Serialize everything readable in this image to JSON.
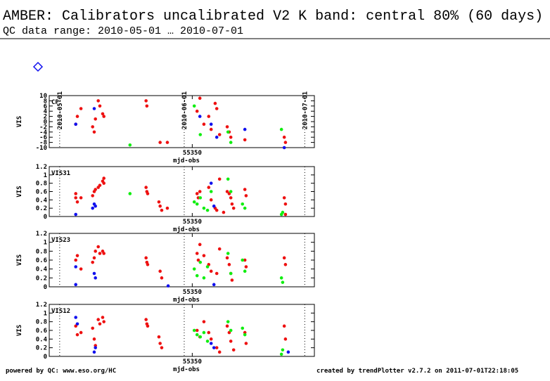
{
  "header": {
    "title": "AMBER: Calibrators uncalibrated V2 K band: central 80% (60 days)",
    "subtitle": "QC data range: 2010-05-01 … 2010-07-01"
  },
  "date_markers": [
    {
      "label": "2010-05-01",
      "value": 55317
    },
    {
      "label": "2010-06-01",
      "value": 55348
    },
    {
      "label": "2010-07-01",
      "value": 55378
    }
  ],
  "footer": {
    "left": "powered by QC: www.eso.org/HC",
    "right": "created by trendPlotter v2.7.2 on 2011-07-01T22:18:05"
  },
  "chart_data": [
    {
      "type": "scatter",
      "label": "CP",
      "xlabel": "mjd-obs",
      "ylabel": "VIS",
      "xlim": [
        55314.4,
        55380.4
      ],
      "xticks": [
        55350
      ],
      "ylim": [
        -10,
        10
      ],
      "yticks": [
        -10,
        -8,
        -6,
        -4,
        -2,
        0,
        2,
        4,
        6,
        8,
        10
      ],
      "series": [
        {
          "color": "#ee1111",
          "x": [
            55321.0,
            55321.4,
            55322.3,
            55325.2,
            55325.6,
            55325.9,
            55326.6,
            55327.0,
            55327.7,
            55328.0,
            55338.5,
            55338.7,
            55342.0,
            55343.8,
            55351.2,
            55351.9,
            55352.9,
            55354.1,
            55354.7,
            55355.7,
            55356.1,
            55356.8,
            55358.7,
            55359.2,
            55359.6,
            55363.1,
            55372.9,
            55373.2
          ],
          "values": [
            -1,
            2,
            5,
            -2,
            -4,
            1,
            8,
            6,
            3,
            2,
            8,
            6,
            -8,
            -8,
            4,
            9,
            -1,
            2,
            -3,
            7,
            5,
            -5,
            -2,
            -4,
            -6,
            -7,
            -6,
            -8
          ]
        },
        {
          "color": "#1111ee",
          "x": [
            55321.0,
            55325.6,
            55351.9,
            55354.7,
            55356.1,
            55363.1,
            55372.9
          ],
          "values": [
            -1,
            5,
            2,
            -1,
            -6,
            -3,
            -10
          ]
        },
        {
          "color": "#11ee11",
          "x": [
            55334.5,
            55350.5,
            55352.0,
            55358.9,
            55359.6,
            55372.2
          ],
          "values": [
            -9,
            6,
            -5,
            -4,
            -8,
            -3
          ]
        }
      ]
    },
    {
      "type": "scatter",
      "label": "VIS31",
      "xlabel": "mjd-obs",
      "ylabel": "VIS",
      "xlim": [
        55314.4,
        55380.4
      ],
      "xticks": [
        55350
      ],
      "ylim": [
        0,
        1.2
      ],
      "yticks": [
        0,
        0.2,
        0.4,
        0.6,
        0.8,
        1,
        1.2
      ],
      "series": [
        {
          "color": "#ee1111",
          "x": [
            55321.0,
            55321.0,
            55321.4,
            55322.3,
            55325.2,
            55325.6,
            55325.9,
            55326.6,
            55327.0,
            55327.7,
            55328.0,
            55328.0,
            55338.5,
            55338.7,
            55338.9,
            55341.7,
            55342.0,
            55342.4,
            55343.8,
            55351.2,
            55351.5,
            55351.9,
            55354.1,
            55354.7,
            55355.7,
            55356.1,
            55356.8,
            55357.8,
            55358.7,
            55359.2,
            55359.6,
            55359.9,
            55360.3,
            55363.1,
            55363.4,
            55372.9,
            55373.2,
            55373.2
          ],
          "values": [
            0.55,
            0.45,
            0.35,
            0.45,
            0.5,
            0.6,
            0.65,
            0.7,
            0.75,
            0.85,
            0.92,
            0.8,
            0.7,
            0.6,
            0.55,
            0.35,
            0.25,
            0.15,
            0.2,
            0.55,
            0.45,
            0.6,
            0.7,
            0.4,
            0.2,
            0.15,
            0.9,
            0.1,
            0.6,
            0.55,
            0.45,
            0.3,
            0.2,
            0.65,
            0.5,
            0.45,
            0.3,
            0.05
          ]
        },
        {
          "color": "#1111ee",
          "x": [
            55321.0,
            55325.2,
            55325.6,
            55325.9,
            55354.7,
            55355.4
          ],
          "values": [
            0.05,
            0.2,
            0.3,
            0.25,
            0.8,
            0.25
          ]
        },
        {
          "color": "#11ee11",
          "x": [
            55334.5,
            55350.5,
            55351.2,
            55352.0,
            55352.9,
            55353.8,
            55354.7,
            55358.9,
            55359.6,
            55362.5,
            55363.1,
            55372.2,
            55372.5
          ],
          "values": [
            0.55,
            0.35,
            0.3,
            0.45,
            0.2,
            0.15,
            0.6,
            0.9,
            0.6,
            0.3,
            0.2,
            0.05,
            0.1
          ]
        }
      ]
    },
    {
      "type": "scatter",
      "label": "VIS23",
      "xlabel": "mjd-obs",
      "ylabel": "VIS",
      "xlim": [
        55314.4,
        55380.4
      ],
      "xticks": [
        55350
      ],
      "ylim": [
        0,
        1.2
      ],
      "yticks": [
        0,
        0.2,
        0.4,
        0.6,
        0.8,
        1,
        1.2
      ],
      "series": [
        {
          "color": "#ee1111",
          "x": [
            55321.0,
            55321.4,
            55322.3,
            55325.2,
            55325.6,
            55325.9,
            55326.6,
            55327.0,
            55327.7,
            55328.0,
            55338.5,
            55338.7,
            55338.9,
            55342.0,
            55342.4,
            55351.2,
            55351.5,
            55351.9,
            55352.9,
            55354.1,
            55354.7,
            55356.1,
            55356.8,
            55358.7,
            55359.2,
            55359.6,
            55359.9,
            55363.1,
            55363.4,
            55372.9,
            55373.2
          ],
          "values": [
            0.6,
            0.7,
            0.4,
            0.55,
            0.65,
            0.8,
            0.9,
            0.75,
            0.8,
            0.75,
            0.65,
            0.55,
            0.5,
            0.35,
            0.2,
            0.75,
            0.6,
            0.95,
            0.7,
            0.5,
            0.35,
            0.3,
            0.85,
            0.65,
            0.5,
            0.3,
            0.15,
            0.6,
            0.45,
            0.65,
            0.5
          ]
        },
        {
          "color": "#1111ee",
          "x": [
            55321.0,
            55321.0,
            55325.6,
            55325.9,
            55344.0,
            55355.4
          ],
          "values": [
            0.45,
            0.05,
            0.3,
            0.2,
            0.02,
            0.05
          ]
        },
        {
          "color": "#11ee11",
          "x": [
            55350.5,
            55351.2,
            55352.0,
            55352.9,
            55353.8,
            55358.9,
            55359.6,
            55362.5,
            55363.1,
            55372.2,
            55372.5
          ],
          "values": [
            0.4,
            0.25,
            0.55,
            0.2,
            0.45,
            0.75,
            0.3,
            0.6,
            0.35,
            0.2,
            0.1
          ]
        }
      ]
    },
    {
      "type": "scatter",
      "label": "VIS12",
      "xlabel": "mjd-obs",
      "ylabel": "VIS",
      "xlim": [
        55314.4,
        55380.4
      ],
      "xticks": [
        55350
      ],
      "ylim": [
        0,
        1.2
      ],
      "yticks": [
        0,
        0.2,
        0.4,
        0.6,
        0.8,
        1,
        1.2
      ],
      "series": [
        {
          "color": "#ee1111",
          "x": [
            55321.0,
            55321.4,
            55322.3,
            55325.2,
            55325.6,
            55325.9,
            55326.6,
            55327.0,
            55327.7,
            55328.0,
            55338.5,
            55338.7,
            55338.9,
            55341.7,
            55342.0,
            55342.4,
            55351.2,
            55351.9,
            55352.9,
            55354.1,
            55354.7,
            55356.1,
            55356.8,
            55358.7,
            55359.2,
            55359.6,
            55360.3,
            55363.1,
            55363.4,
            55372.9,
            55373.2
          ],
          "values": [
            0.7,
            0.5,
            0.55,
            0.65,
            0.4,
            0.25,
            0.85,
            0.75,
            0.9,
            0.8,
            0.85,
            0.75,
            0.7,
            0.45,
            0.3,
            0.2,
            0.6,
            0.45,
            0.8,
            0.55,
            0.4,
            0.2,
            0.1,
            0.7,
            0.55,
            0.35,
            0.15,
            0.55,
            0.3,
            0.7,
            0.4
          ]
        },
        {
          "color": "#1111ee",
          "x": [
            55321.0,
            55321.4,
            55325.6,
            55325.9,
            55354.7,
            55355.4,
            55373.9
          ],
          "values": [
            0.9,
            0.75,
            0.1,
            0.2,
            0.3,
            0.2,
            0.1
          ]
        },
        {
          "color": "#11ee11",
          "x": [
            55350.5,
            55351.2,
            55352.0,
            55352.9,
            55353.8,
            55358.9,
            55359.6,
            55362.5,
            55363.1,
            55372.2,
            55372.5
          ],
          "values": [
            0.6,
            0.5,
            0.45,
            0.55,
            0.35,
            0.8,
            0.6,
            0.65,
            0.5,
            0.05,
            0.15
          ]
        }
      ]
    }
  ]
}
